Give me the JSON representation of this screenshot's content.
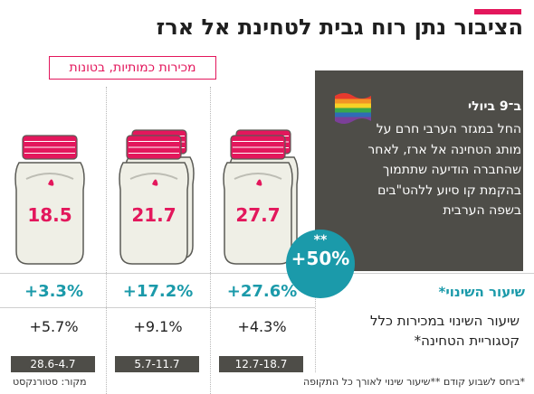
{
  "title": "הציבור נתן רוח גבית לטחינת אל ארז",
  "accent_color": "#e3175c",
  "dark_color": "#4e4d48",
  "teal_color": "#1b9aaa",
  "chart_data": {
    "type": "bar",
    "title": "הציבור נתן רוח גבית לטחינת אל ארז",
    "subtitle": "מכירות כמותיות, בטונות",
    "categories": [
      "28.6-4.7",
      "5.7-11.7",
      "12.7-18.7"
    ],
    "values": [
      18.5,
      21.7,
      27.7
    ],
    "change_vs_previous_week": [
      "+3.3%",
      "+17.2%",
      "+27.6%"
    ],
    "change_tahini_category": [
      "+5.7%",
      "+9.1%",
      "+4.3%"
    ],
    "overall_change": "+50%",
    "overall_change_marker": "**",
    "row_labels": {
      "change_vs_previous_week": "שיעור השינוי*",
      "change_tahini_category": "שיעור השינוי במכירות כלל קטגוריית הטחינה*"
    }
  },
  "info_box": {
    "heading": "ב־9 ביולי",
    "body": "החל במגזר הערבי חרם על מותג הטחינה אל ארז, לאחר שהחברה הודיעה שתתמוך בהקמת קו סיוע ללהט\"בים בשפה הערבית",
    "flag_icon": "rainbow-flag-icon"
  },
  "footnote": "*ביחס לשבוע קודם **שיעור שינוי לאורך כל התקופה",
  "source": "מקור: סטורנקסט"
}
